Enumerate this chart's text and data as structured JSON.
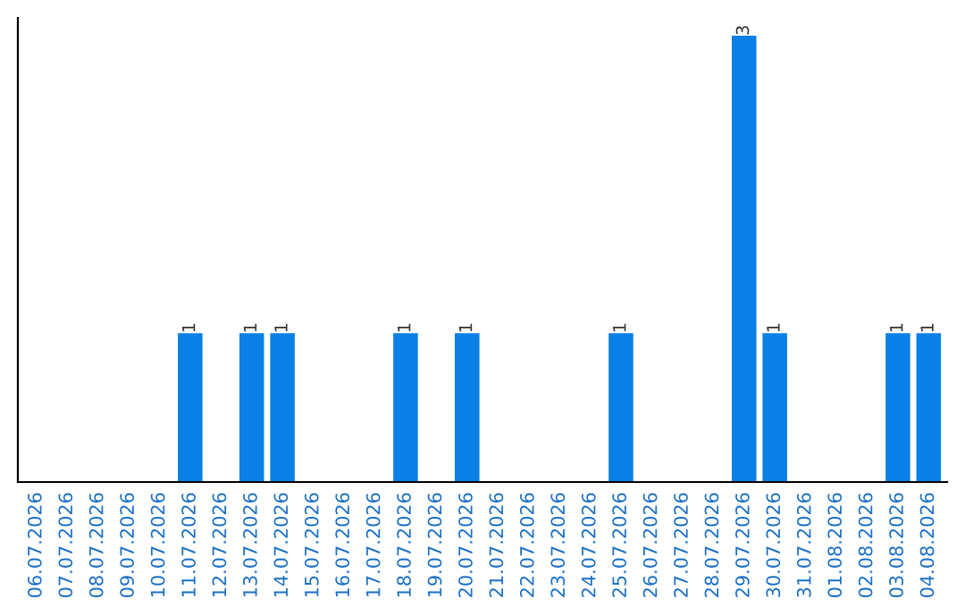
{
  "chart_data": {
    "type": "bar",
    "categories": [
      "06.07.2026",
      "07.07.2026",
      "08.07.2026",
      "09.07.2026",
      "10.07.2026",
      "11.07.2026",
      "12.07.2026",
      "13.07.2026",
      "14.07.2026",
      "15.07.2026",
      "16.07.2026",
      "17.07.2026",
      "18.07.2026",
      "19.07.2026",
      "20.07.2026",
      "21.07.2026",
      "22.07.2026",
      "23.07.2026",
      "24.07.2026",
      "25.07.2026",
      "26.07.2026",
      "27.07.2026",
      "28.07.2026",
      "29.07.2026",
      "30.07.2026",
      "31.07.2026",
      "01.08.2026",
      "02.08.2026",
      "03.08.2026",
      "04.08.2026"
    ],
    "values": [
      0,
      0,
      0,
      0,
      0,
      1,
      0,
      1,
      1,
      0,
      0,
      0,
      1,
      0,
      1,
      0,
      0,
      0,
      0,
      1,
      0,
      0,
      0,
      3,
      1,
      0,
      0,
      0,
      1,
      1
    ],
    "value_labels": [
      null,
      null,
      null,
      null,
      null,
      "1",
      null,
      "1",
      "1",
      null,
      null,
      null,
      "1",
      null,
      "1",
      null,
      null,
      null,
      null,
      "1",
      null,
      null,
      null,
      "3",
      "1",
      null,
      null,
      null,
      "1",
      "1"
    ],
    "color": "#0a7fe6",
    "grid": false,
    "legend": false
  }
}
